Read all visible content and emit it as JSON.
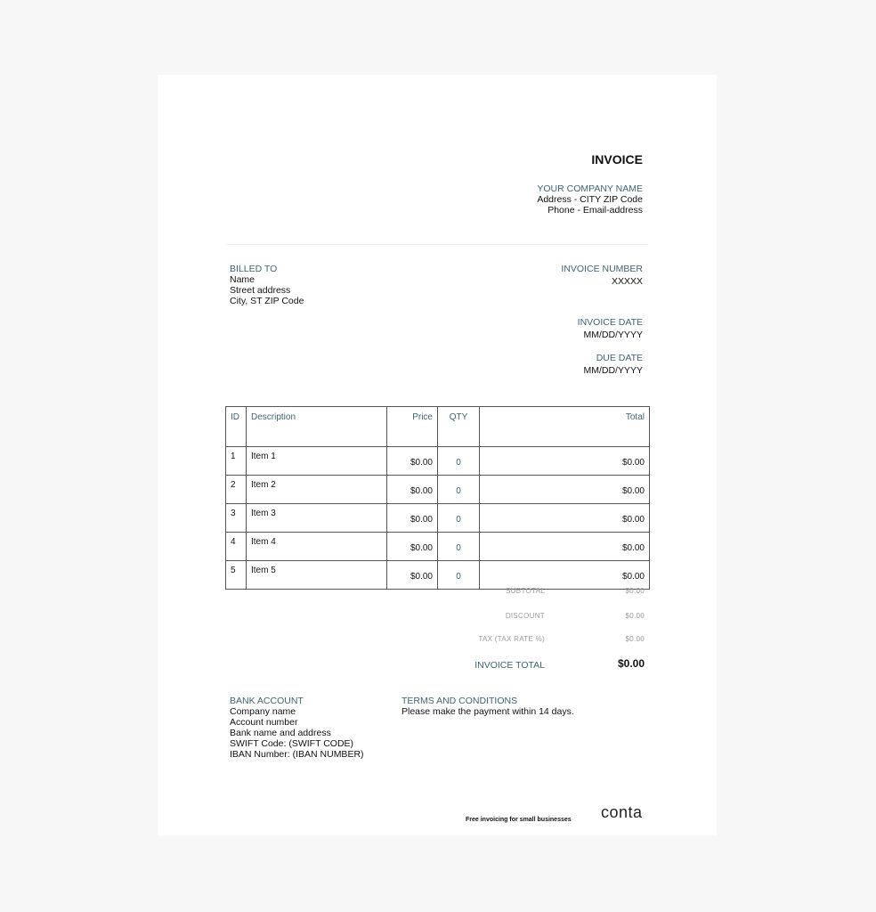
{
  "invoice": {
    "title": "INVOICE",
    "company_name": "YOUR COMPANY NAME",
    "company_address": "Address - CITY ZIP Code",
    "company_contact": "Phone - Email-address"
  },
  "billed_to": {
    "label": "BILLED TO",
    "name": "Name",
    "street": "Street address",
    "city": "City, ST ZIP Code"
  },
  "meta": {
    "number_label": "INVOICE NUMBER",
    "number": "XXXXX",
    "date_label": "INVOICE DATE",
    "date": "MM/DD/YYYY",
    "due_label": "DUE DATE",
    "due": "MM/DD/YYYY"
  },
  "table": {
    "headers": [
      "ID",
      "Description",
      "Price",
      "QTY",
      "Total"
    ],
    "rows": [
      [
        "1",
        "Item 1",
        "$0.00",
        "0",
        "$0.00"
      ],
      [
        "2",
        "Item 2",
        "$0.00",
        "0",
        "$0.00"
      ],
      [
        "3",
        "Item 3",
        "$0.00",
        "0",
        "$0.00"
      ],
      [
        "4",
        "Item 4",
        "$0.00",
        "0",
        "$0.00"
      ],
      [
        "5",
        "Item 5",
        "$0.00",
        "0",
        "$0.00"
      ]
    ]
  },
  "totals": {
    "subtotal_label": "SUBTOTAL",
    "subtotal": "$0.00",
    "discount_label": "DISCOUNT",
    "discount": "$0.00",
    "tax_label": "TAX (TAX RATE %)",
    "tax": "$0.00",
    "total_label": "INVOICE TOTAL",
    "total": "$0.00"
  },
  "bank": {
    "label": "BANK ACCOUNT",
    "lines": [
      "Company name",
      "Account number",
      "Bank name and address",
      "SWIFT Code: (SWIFT CODE)",
      "IBAN Number: (IBAN NUMBER)"
    ]
  },
  "terms": {
    "label": "TERMS AND CONDITIONS",
    "text": "Please make the payment within 14 days."
  },
  "footer": {
    "tagline": "Free invoicing for small businesses",
    "logo": "conta"
  }
}
